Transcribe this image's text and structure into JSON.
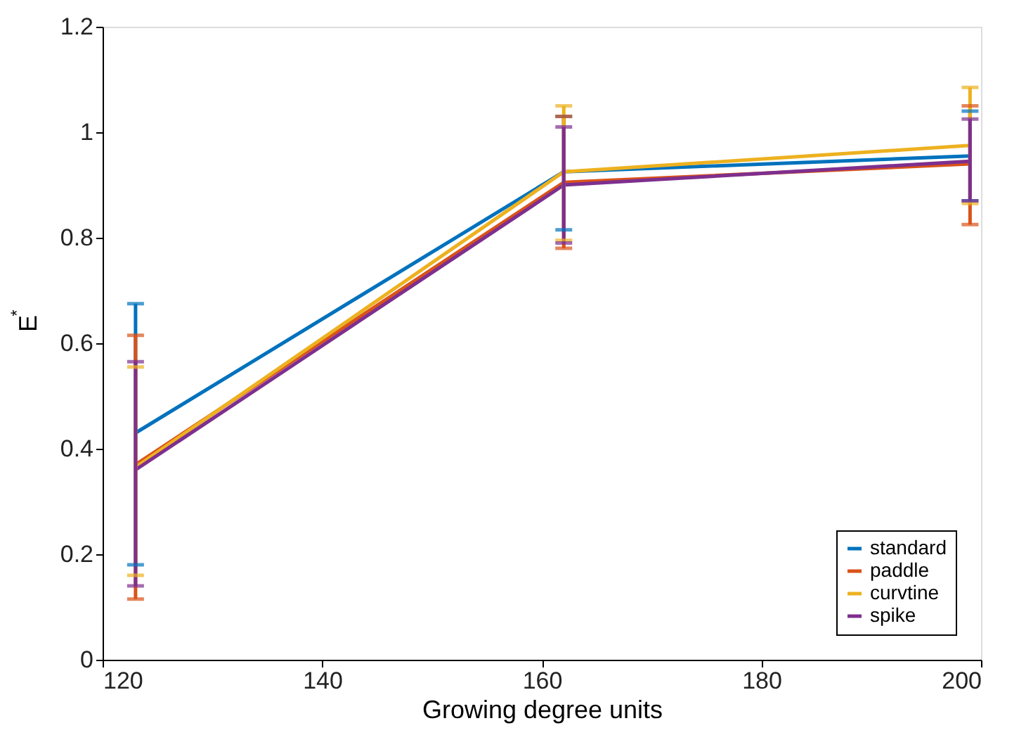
{
  "chart_data": {
    "type": "line",
    "xlabel": "Growing degree units",
    "ylabel": "E$^{*}$",
    "x": [
      123,
      162,
      199
    ],
    "series": [
      {
        "name": "standard",
        "color": "#0072bd",
        "values": [
          0.43,
          0.925,
          0.955
        ],
        "errors": [
          [
            0.18,
            0.675
          ],
          [
            0.815,
            1.03
          ],
          [
            0.87,
            1.04
          ]
        ]
      },
      {
        "name": "paddle",
        "color": "#d95319",
        "values": [
          0.37,
          0.905,
          0.94
        ],
        "errors": [
          [
            0.115,
            0.615
          ],
          [
            0.78,
            1.03
          ],
          [
            0.825,
            1.05
          ]
        ]
      },
      {
        "name": "curvtine",
        "color": "#edb120",
        "values": [
          0.365,
          0.925,
          0.975
        ],
        "errors": [
          [
            0.16,
            0.555
          ],
          [
            0.795,
            1.05
          ],
          [
            0.865,
            1.085
          ]
        ]
      },
      {
        "name": "spike",
        "color": "#7e2f8e",
        "values": [
          0.36,
          0.9,
          0.945
        ],
        "errors": [
          [
            0.14,
            0.565
          ],
          [
            0.79,
            1.01
          ],
          [
            0.87,
            1.025
          ]
        ]
      }
    ],
    "xlim": [
      120,
      200
    ],
    "xticks": [
      120,
      140,
      160,
      180,
      200
    ],
    "ylim": [
      0,
      1.2
    ],
    "yticks": [
      0,
      0.2,
      0.4,
      0.6,
      0.8,
      1,
      1.2
    ],
    "grid": false,
    "legend": "bottom right",
    "marker": "none",
    "line_style": "solid"
  }
}
